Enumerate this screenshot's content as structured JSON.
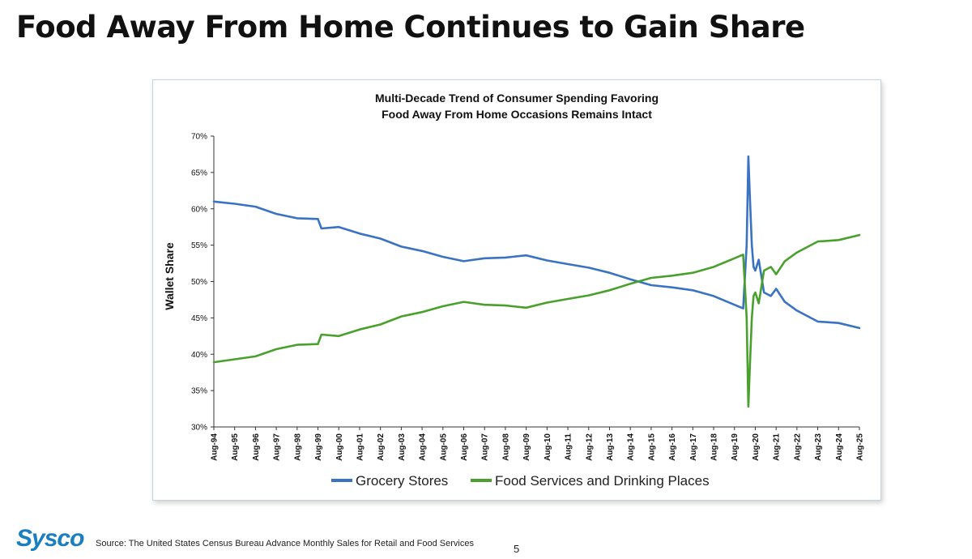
{
  "page": {
    "headline": "Food Away From Home Continues to Gain Share",
    "source": "Source: The United States Census Bureau Advance Monthly Sales for Retail and Food Services",
    "page_number": "5",
    "logo": "Sysco"
  },
  "colors": {
    "grocery": "#3a72c4",
    "food_services": "#4aa02c",
    "axis": "#333333",
    "text": "#111111"
  },
  "chart_data": {
    "type": "line",
    "title_line1": "Multi-Decade Trend of Consumer Spending Favoring",
    "title_line2": "Food Away From Home Occasions Remains Intact",
    "ylabel": "Wallet Share",
    "xlabel": "",
    "ylim": [
      30,
      70
    ],
    "yticks": [
      30,
      35,
      40,
      45,
      50,
      55,
      60,
      65,
      70
    ],
    "ytick_labels": [
      "30%",
      "35%",
      "40%",
      "45%",
      "50%",
      "55%",
      "60%",
      "65%",
      "70%"
    ],
    "xlim": [
      1994.583,
      2025.583
    ],
    "x_tick_labels": [
      "Aug-94",
      "Aug-95",
      "Aug-96",
      "Aug-97",
      "Aug-98",
      "Aug-99",
      "Aug-00",
      "Aug-01",
      "Aug-02",
      "Aug-03",
      "Aug-04",
      "Aug-05",
      "Aug-06",
      "Aug-07",
      "Aug-08",
      "Aug-09",
      "Aug-10",
      "Aug-11",
      "Aug-12",
      "Aug-13",
      "Aug-14",
      "Aug-15",
      "Aug-16",
      "Aug-17",
      "Aug-18",
      "Aug-19",
      "Aug-20",
      "Aug-21",
      "Aug-22",
      "Aug-23",
      "Aug-24",
      "Aug-25"
    ],
    "legend_position": "bottom",
    "series": [
      {
        "name": "Grocery Stores",
        "x": [
          1994.583,
          1995.583,
          1996.583,
          1997.583,
          1998.583,
          1999.583,
          1999.75,
          2000.583,
          2001.583,
          2002.583,
          2003.583,
          2004.583,
          2005.583,
          2006.583,
          2007.583,
          2008.583,
          2009.583,
          2010.583,
          2011.583,
          2012.583,
          2013.583,
          2014.583,
          2015.583,
          2016.583,
          2017.583,
          2018.583,
          2019.583,
          2020.0,
          2020.167,
          2020.25,
          2020.333,
          2020.417,
          2020.5,
          2020.583,
          2020.75,
          2021.0,
          2021.333,
          2021.583,
          2022.0,
          2022.583,
          2023.583,
          2024.583,
          2025.583
        ],
        "values": [
          61.0,
          60.7,
          60.3,
          59.3,
          58.7,
          58.6,
          57.3,
          57.5,
          56.6,
          55.9,
          54.8,
          54.2,
          53.4,
          52.8,
          53.2,
          53.3,
          53.6,
          52.9,
          52.4,
          51.9,
          51.2,
          50.3,
          49.5,
          49.2,
          48.8,
          48.0,
          46.8,
          46.3,
          55.0,
          67.2,
          61.0,
          55.0,
          52.0,
          51.5,
          53.0,
          48.5,
          48.0,
          49.0,
          47.2,
          46.0,
          44.5,
          44.3,
          43.6
        ]
      },
      {
        "name": "Food Services and Drinking Places",
        "x": [
          1994.583,
          1995.583,
          1996.583,
          1997.583,
          1998.583,
          1999.583,
          1999.75,
          2000.583,
          2001.583,
          2002.583,
          2003.583,
          2004.583,
          2005.583,
          2006.583,
          2007.583,
          2008.583,
          2009.583,
          2010.583,
          2011.583,
          2012.583,
          2013.583,
          2014.583,
          2015.583,
          2016.583,
          2017.583,
          2018.583,
          2019.583,
          2020.0,
          2020.167,
          2020.25,
          2020.333,
          2020.417,
          2020.5,
          2020.583,
          2020.75,
          2021.0,
          2021.333,
          2021.583,
          2022.0,
          2022.583,
          2023.583,
          2024.583,
          2025.583
        ],
        "values": [
          38.9,
          39.3,
          39.7,
          40.7,
          41.3,
          41.4,
          42.7,
          42.5,
          43.4,
          44.1,
          45.2,
          45.8,
          46.6,
          47.2,
          46.8,
          46.7,
          46.4,
          47.1,
          47.6,
          48.1,
          48.8,
          49.7,
          50.5,
          50.8,
          51.2,
          52.0,
          53.2,
          53.7,
          45.0,
          32.8,
          39.0,
          45.0,
          48.0,
          48.5,
          47.0,
          51.5,
          52.0,
          51.0,
          52.8,
          54.0,
          55.5,
          55.7,
          56.4
        ]
      }
    ]
  }
}
